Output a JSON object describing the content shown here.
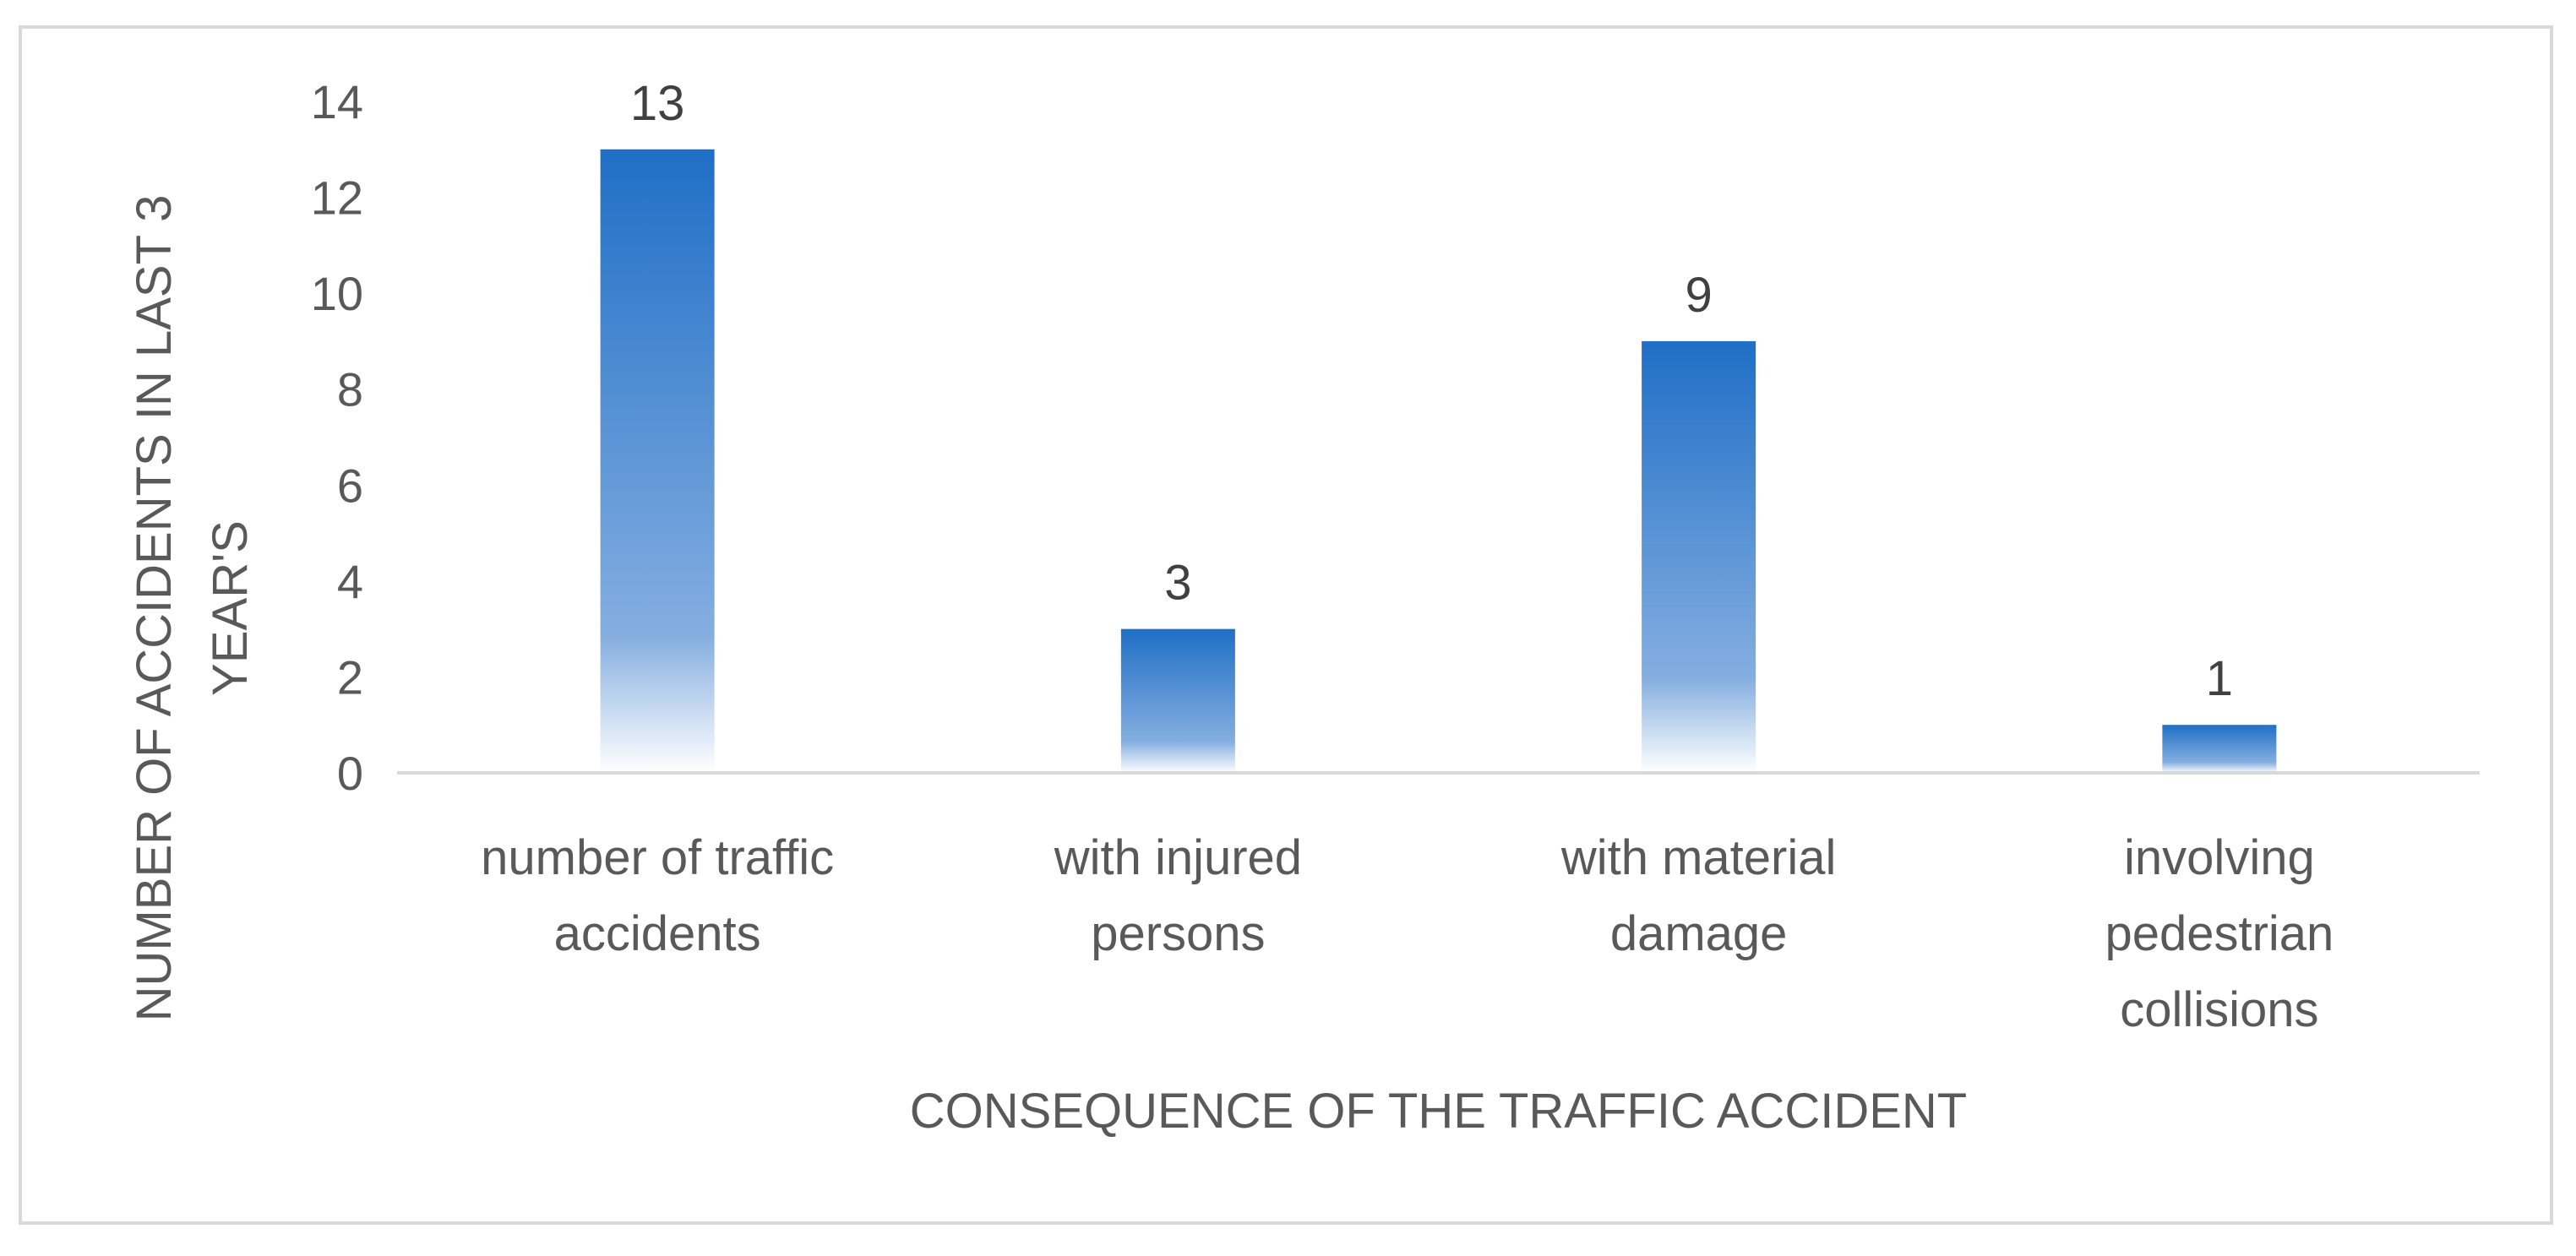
{
  "chart_data": {
    "type": "bar",
    "title": "",
    "xlabel": "CONSEQUENCE OF THE TRAFFIC ACCIDENT",
    "ylabel": "NUMBER OF ACCIDENTS  IN LAST 3 YEAR'S",
    "ylabel_lines": [
      "NUMBER OF ACCIDENTS  IN LAST 3",
      "YEAR'S"
    ],
    "categories": [
      [
        "number of traffic",
        "accidents"
      ],
      [
        "with injured",
        "persons"
      ],
      [
        "with material",
        "damage"
      ],
      [
        "involving",
        "pedestrian",
        "collisions"
      ]
    ],
    "values": [
      13,
      3,
      9,
      1
    ],
    "data_labels": [
      "13",
      "3",
      "9",
      "1"
    ],
    "ylim": [
      0,
      14
    ],
    "yticks": [
      0,
      2,
      4,
      6,
      8,
      10,
      12,
      14
    ],
    "grid": false,
    "legend": "none",
    "bar_color_top": "#1f6fc6",
    "bar_color_bottom": "#ffffff"
  }
}
